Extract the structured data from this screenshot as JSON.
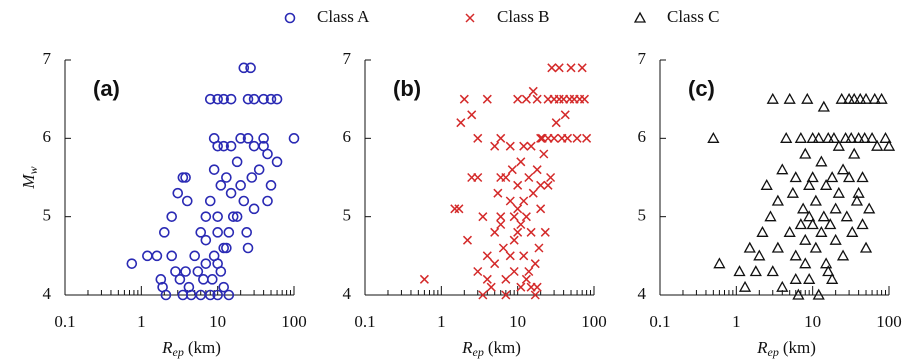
{
  "chart_data": [
    {
      "type": "scatter",
      "label": "(a)",
      "xscale": "log",
      "xlim": [
        0.1,
        100
      ],
      "ylim": [
        4,
        7
      ],
      "xticks": [
        0.1,
        1,
        10,
        100
      ],
      "yticks": [
        4,
        5,
        6,
        7
      ],
      "xminor": true,
      "xlabel_symbol": "R",
      "xlabel_sub": "ep",
      "xlabel_unit": "(km)",
      "ylabel_symbol": "M",
      "ylabel_sub": "w",
      "series": [
        {
          "name": "Class A",
          "color": "#2a2ab4",
          "marker": "circle",
          "x": [
            0.75,
            1.2,
            1.6,
            1.8,
            1.9,
            2.1,
            2.5,
            2.8,
            3.2,
            3.5,
            3.8,
            4.2,
            4.5,
            5,
            5.5,
            6,
            6.5,
            7,
            8,
            8.5,
            9,
            10,
            11,
            12,
            14,
            2.5,
            3,
            3.5,
            3.8,
            4,
            2,
            6,
            7,
            8,
            9,
            10,
            10,
            11,
            12,
            13,
            14,
            15,
            16,
            18,
            20,
            22,
            24,
            25,
            28,
            30,
            35,
            40,
            45,
            50,
            30,
            25,
            60,
            100,
            8,
            10,
            12,
            15,
            25,
            30,
            40,
            50,
            60,
            22,
            27,
            10,
            9,
            15,
            20,
            40,
            18,
            12,
            7,
            13,
            45,
            10
          ],
          "y": [
            4.4,
            4.5,
            4.5,
            4.2,
            4.1,
            4.0,
            4.5,
            4.3,
            4.2,
            4.0,
            4.3,
            4.1,
            4.0,
            4.5,
            4.3,
            4.0,
            4.2,
            4.4,
            4.0,
            4.2,
            4.5,
            4.0,
            4.3,
            4.1,
            4.0,
            5.0,
            5.3,
            5.5,
            5.5,
            5.2,
            4.8,
            4.8,
            4.7,
            5.2,
            5.6,
            4.8,
            5.0,
            5.4,
            5.9,
            5.5,
            4.8,
            5.3,
            5.0,
            5.7,
            5.4,
            5.2,
            4.8,
            6.0,
            5.5,
            5.9,
            5.6,
            6.0,
            5.8,
            5.4,
            5.1,
            4.6,
            5.7,
            6.0,
            6.5,
            6.5,
            6.5,
            6.5,
            6.5,
            6.5,
            6.5,
            6.5,
            6.5,
            6.9,
            6.9,
            5.9,
            6.0,
            5.9,
            6.0,
            5.9,
            5.0,
            4.6,
            5.0,
            4.6,
            5.2,
            4.4
          ]
        }
      ]
    },
    {
      "type": "scatter",
      "label": "(b)",
      "xscale": "log",
      "xlim": [
        0.1,
        100
      ],
      "ylim": [
        4,
        7
      ],
      "xticks": [
        0.1,
        1,
        10,
        100
      ],
      "yticks": [
        4,
        5,
        6,
        7
      ],
      "xminor": true,
      "xlabel_symbol": "R",
      "xlabel_sub": "ep",
      "xlabel_unit": "(km)",
      "series": [
        {
          "name": "Class B",
          "color": "#d42a2a",
          "marker": "cross",
          "x": [
            0.6,
            1.8,
            2,
            2.5,
            3,
            1.5,
            1.7,
            2.2,
            2.5,
            3,
            3.5,
            4,
            4,
            3,
            3.5,
            4.5,
            5,
            5,
            5.5,
            6,
            6,
            6.5,
            7,
            7,
            8,
            8,
            8.5,
            9,
            9,
            10,
            10,
            10,
            11,
            11,
            12,
            12,
            13,
            14,
            14,
            15,
            15,
            16,
            17,
            18,
            19,
            20,
            20,
            21,
            22,
            23,
            25,
            25,
            27,
            28,
            30,
            30,
            32,
            35,
            35,
            38,
            40,
            42,
            45,
            48,
            50,
            55,
            60,
            65,
            70,
            75,
            80,
            4,
            5,
            6,
            8,
            10,
            13,
            16,
            18,
            20,
            12,
            7,
            9,
            11,
            6,
            15,
            17,
            25,
            18,
            13
          ],
          "y": [
            4.2,
            6.2,
            6.5,
            6.3,
            6.0,
            5.1,
            5.1,
            4.7,
            5.5,
            5.5,
            5.0,
            4.5,
            4.2,
            4.3,
            4.0,
            4.1,
            4.4,
            4.8,
            5.3,
            5.5,
            5.0,
            4.6,
            4.2,
            4.0,
            4.5,
            5.2,
            5.6,
            5.0,
            4.3,
            4.8,
            5.1,
            5.4,
            5.7,
            4.1,
            4.5,
            5.2,
            5.0,
            5.5,
            4.3,
            5.9,
            4.8,
            5.3,
            4.0,
            5.6,
            4.6,
            5.1,
            5.4,
            6.0,
            5.8,
            4.8,
            6.0,
            6.5,
            5.5,
            6.9,
            6.0,
            6.5,
            6.2,
            6.5,
            6.9,
            6.0,
            6.5,
            6.3,
            6.0,
            6.5,
            6.9,
            6.5,
            6.0,
            6.5,
            6.9,
            6.5,
            6.0,
            6.5,
            5.9,
            6.0,
            5.9,
            6.5,
            6.5,
            6.6,
            6.5,
            6.0,
            5.9,
            5.5,
            4.7,
            4.9,
            4.9,
            4.1,
            4.4,
            5.4,
            4.1,
            4.2
          ]
        }
      ]
    },
    {
      "type": "scatter",
      "label": "(c)",
      "xscale": "log",
      "xlim": [
        0.1,
        100
      ],
      "ylim": [
        4,
        7
      ],
      "xticks": [
        0.1,
        1,
        10,
        100
      ],
      "yticks": [
        4,
        5,
        6,
        7
      ],
      "xminor": true,
      "xlabel_symbol": "R",
      "xlabel_sub": "ep",
      "xlabel_unit": "(km)",
      "series": [
        {
          "name": "Class C",
          "color": "#111111",
          "marker": "triangle",
          "x": [
            0.5,
            0.6,
            1.1,
            1.3,
            1.5,
            1.8,
            2,
            2.2,
            2.5,
            2.8,
            3,
            3,
            3.5,
            3.5,
            4,
            4,
            4.5,
            5,
            5,
            5.5,
            6,
            6,
            6.5,
            7,
            7,
            7.5,
            8,
            8,
            8.5,
            9,
            9,
            10,
            10,
            10,
            11,
            11,
            12,
            12,
            13,
            13,
            14,
            14,
            15,
            15,
            16,
            17,
            18,
            18,
            19,
            20,
            20,
            22,
            22,
            24,
            25,
            25,
            27,
            28,
            30,
            30,
            32,
            33,
            35,
            35,
            38,
            40,
            42,
            45,
            48,
            50,
            55,
            60,
            65,
            70,
            80,
            90,
            100,
            50,
            45,
            8,
            9,
            6,
            16,
            40
          ],
          "y": [
            6.0,
            4.4,
            4.3,
            4.1,
            4.6,
            4.3,
            4.5,
            4.8,
            5.4,
            5.0,
            4.3,
            6.5,
            4.6,
            5.2,
            4.1,
            5.6,
            6.0,
            6.5,
            4.8,
            5.3,
            4.5,
            5.5,
            4.0,
            6.0,
            4.9,
            5.1,
            5.8,
            4.4,
            6.5,
            5.4,
            4.2,
            4.9,
            6.0,
            5.5,
            4.6,
            5.2,
            4.0,
            6.0,
            5.7,
            4.8,
            6.4,
            5.0,
            4.4,
            5.4,
            6.0,
            4.9,
            5.5,
            4.2,
            6.0,
            5.1,
            4.7,
            5.9,
            5.3,
            6.5,
            5.6,
            4.5,
            6.0,
            5.0,
            6.5,
            5.5,
            6.0,
            4.8,
            6.5,
            5.8,
            5.2,
            6.0,
            6.5,
            5.5,
            6.0,
            6.5,
            5.1,
            6.0,
            6.5,
            5.9,
            6.5,
            6.0,
            5.9,
            4.6,
            4.9,
            4.7,
            5.0,
            4.2,
            4.3,
            5.3
          ]
        }
      ]
    }
  ]
}
